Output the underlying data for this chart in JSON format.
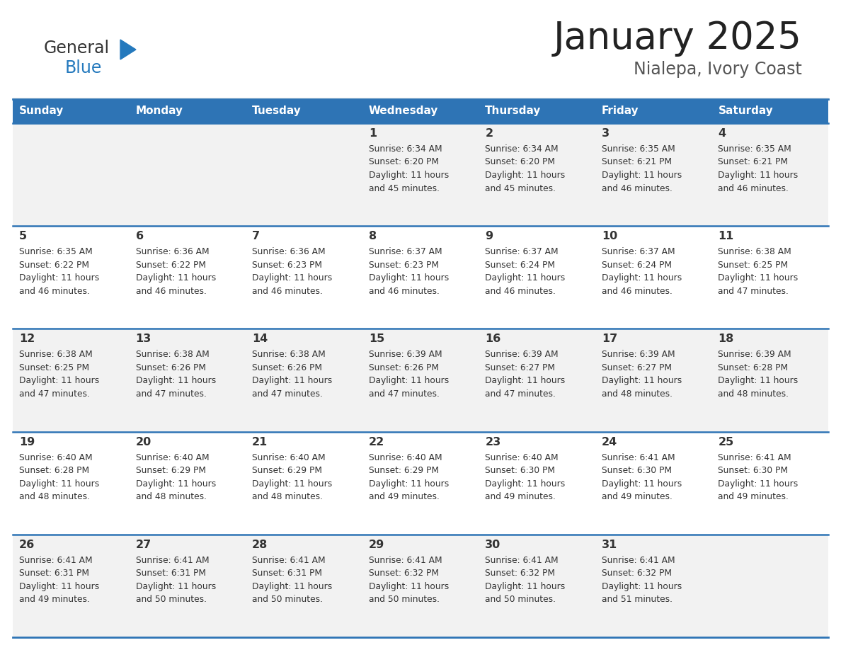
{
  "title": "January 2025",
  "subtitle": "Nialepa, Ivory Coast",
  "header_bg": "#2E74B5",
  "header_text_color": "#FFFFFF",
  "cell_bg_odd": "#F2F2F2",
  "cell_bg_even": "#FFFFFF",
  "border_color": "#2E74B5",
  "day_headers": [
    "Sunday",
    "Monday",
    "Tuesday",
    "Wednesday",
    "Thursday",
    "Friday",
    "Saturday"
  ],
  "calendar_data": [
    [
      {
        "day": "",
        "sunrise": "",
        "sunset": "",
        "daylight_line1": "",
        "daylight_line2": ""
      },
      {
        "day": "",
        "sunrise": "",
        "sunset": "",
        "daylight_line1": "",
        "daylight_line2": ""
      },
      {
        "day": "",
        "sunrise": "",
        "sunset": "",
        "daylight_line1": "",
        "daylight_line2": ""
      },
      {
        "day": "1",
        "sunrise": "Sunrise: 6:34 AM",
        "sunset": "Sunset: 6:20 PM",
        "daylight_line1": "Daylight: 11 hours",
        "daylight_line2": "and 45 minutes."
      },
      {
        "day": "2",
        "sunrise": "Sunrise: 6:34 AM",
        "sunset": "Sunset: 6:20 PM",
        "daylight_line1": "Daylight: 11 hours",
        "daylight_line2": "and 45 minutes."
      },
      {
        "day": "3",
        "sunrise": "Sunrise: 6:35 AM",
        "sunset": "Sunset: 6:21 PM",
        "daylight_line1": "Daylight: 11 hours",
        "daylight_line2": "and 46 minutes."
      },
      {
        "day": "4",
        "sunrise": "Sunrise: 6:35 AM",
        "sunset": "Sunset: 6:21 PM",
        "daylight_line1": "Daylight: 11 hours",
        "daylight_line2": "and 46 minutes."
      }
    ],
    [
      {
        "day": "5",
        "sunrise": "Sunrise: 6:35 AM",
        "sunset": "Sunset: 6:22 PM",
        "daylight_line1": "Daylight: 11 hours",
        "daylight_line2": "and 46 minutes."
      },
      {
        "day": "6",
        "sunrise": "Sunrise: 6:36 AM",
        "sunset": "Sunset: 6:22 PM",
        "daylight_line1": "Daylight: 11 hours",
        "daylight_line2": "and 46 minutes."
      },
      {
        "day": "7",
        "sunrise": "Sunrise: 6:36 AM",
        "sunset": "Sunset: 6:23 PM",
        "daylight_line1": "Daylight: 11 hours",
        "daylight_line2": "and 46 minutes."
      },
      {
        "day": "8",
        "sunrise": "Sunrise: 6:37 AM",
        "sunset": "Sunset: 6:23 PM",
        "daylight_line1": "Daylight: 11 hours",
        "daylight_line2": "and 46 minutes."
      },
      {
        "day": "9",
        "sunrise": "Sunrise: 6:37 AM",
        "sunset": "Sunset: 6:24 PM",
        "daylight_line1": "Daylight: 11 hours",
        "daylight_line2": "and 46 minutes."
      },
      {
        "day": "10",
        "sunrise": "Sunrise: 6:37 AM",
        "sunset": "Sunset: 6:24 PM",
        "daylight_line1": "Daylight: 11 hours",
        "daylight_line2": "and 46 minutes."
      },
      {
        "day": "11",
        "sunrise": "Sunrise: 6:38 AM",
        "sunset": "Sunset: 6:25 PM",
        "daylight_line1": "Daylight: 11 hours",
        "daylight_line2": "and 47 minutes."
      }
    ],
    [
      {
        "day": "12",
        "sunrise": "Sunrise: 6:38 AM",
        "sunset": "Sunset: 6:25 PM",
        "daylight_line1": "Daylight: 11 hours",
        "daylight_line2": "and 47 minutes."
      },
      {
        "day": "13",
        "sunrise": "Sunrise: 6:38 AM",
        "sunset": "Sunset: 6:26 PM",
        "daylight_line1": "Daylight: 11 hours",
        "daylight_line2": "and 47 minutes."
      },
      {
        "day": "14",
        "sunrise": "Sunrise: 6:38 AM",
        "sunset": "Sunset: 6:26 PM",
        "daylight_line1": "Daylight: 11 hours",
        "daylight_line2": "and 47 minutes."
      },
      {
        "day": "15",
        "sunrise": "Sunrise: 6:39 AM",
        "sunset": "Sunset: 6:26 PM",
        "daylight_line1": "Daylight: 11 hours",
        "daylight_line2": "and 47 minutes."
      },
      {
        "day": "16",
        "sunrise": "Sunrise: 6:39 AM",
        "sunset": "Sunset: 6:27 PM",
        "daylight_line1": "Daylight: 11 hours",
        "daylight_line2": "and 47 minutes."
      },
      {
        "day": "17",
        "sunrise": "Sunrise: 6:39 AM",
        "sunset": "Sunset: 6:27 PM",
        "daylight_line1": "Daylight: 11 hours",
        "daylight_line2": "and 48 minutes."
      },
      {
        "day": "18",
        "sunrise": "Sunrise: 6:39 AM",
        "sunset": "Sunset: 6:28 PM",
        "daylight_line1": "Daylight: 11 hours",
        "daylight_line2": "and 48 minutes."
      }
    ],
    [
      {
        "day": "19",
        "sunrise": "Sunrise: 6:40 AM",
        "sunset": "Sunset: 6:28 PM",
        "daylight_line1": "Daylight: 11 hours",
        "daylight_line2": "and 48 minutes."
      },
      {
        "day": "20",
        "sunrise": "Sunrise: 6:40 AM",
        "sunset": "Sunset: 6:29 PM",
        "daylight_line1": "Daylight: 11 hours",
        "daylight_line2": "and 48 minutes."
      },
      {
        "day": "21",
        "sunrise": "Sunrise: 6:40 AM",
        "sunset": "Sunset: 6:29 PM",
        "daylight_line1": "Daylight: 11 hours",
        "daylight_line2": "and 48 minutes."
      },
      {
        "day": "22",
        "sunrise": "Sunrise: 6:40 AM",
        "sunset": "Sunset: 6:29 PM",
        "daylight_line1": "Daylight: 11 hours",
        "daylight_line2": "and 49 minutes."
      },
      {
        "day": "23",
        "sunrise": "Sunrise: 6:40 AM",
        "sunset": "Sunset: 6:30 PM",
        "daylight_line1": "Daylight: 11 hours",
        "daylight_line2": "and 49 minutes."
      },
      {
        "day": "24",
        "sunrise": "Sunrise: 6:41 AM",
        "sunset": "Sunset: 6:30 PM",
        "daylight_line1": "Daylight: 11 hours",
        "daylight_line2": "and 49 minutes."
      },
      {
        "day": "25",
        "sunrise": "Sunrise: 6:41 AM",
        "sunset": "Sunset: 6:30 PM",
        "daylight_line1": "Daylight: 11 hours",
        "daylight_line2": "and 49 minutes."
      }
    ],
    [
      {
        "day": "26",
        "sunrise": "Sunrise: 6:41 AM",
        "sunset": "Sunset: 6:31 PM",
        "daylight_line1": "Daylight: 11 hours",
        "daylight_line2": "and 49 minutes."
      },
      {
        "day": "27",
        "sunrise": "Sunrise: 6:41 AM",
        "sunset": "Sunset: 6:31 PM",
        "daylight_line1": "Daylight: 11 hours",
        "daylight_line2": "and 50 minutes."
      },
      {
        "day": "28",
        "sunrise": "Sunrise: 6:41 AM",
        "sunset": "Sunset: 6:31 PM",
        "daylight_line1": "Daylight: 11 hours",
        "daylight_line2": "and 50 minutes."
      },
      {
        "day": "29",
        "sunrise": "Sunrise: 6:41 AM",
        "sunset": "Sunset: 6:32 PM",
        "daylight_line1": "Daylight: 11 hours",
        "daylight_line2": "and 50 minutes."
      },
      {
        "day": "30",
        "sunrise": "Sunrise: 6:41 AM",
        "sunset": "Sunset: 6:32 PM",
        "daylight_line1": "Daylight: 11 hours",
        "daylight_line2": "and 50 minutes."
      },
      {
        "day": "31",
        "sunrise": "Sunrise: 6:41 AM",
        "sunset": "Sunset: 6:32 PM",
        "daylight_line1": "Daylight: 11 hours",
        "daylight_line2": "and 51 minutes."
      },
      {
        "day": "",
        "sunrise": "",
        "sunset": "",
        "daylight_line1": "",
        "daylight_line2": ""
      }
    ]
  ],
  "logo_color_general": "#333333",
  "logo_color_blue": "#2479BD",
  "title_color": "#222222",
  "subtitle_color": "#555555",
  "text_color": "#333333"
}
